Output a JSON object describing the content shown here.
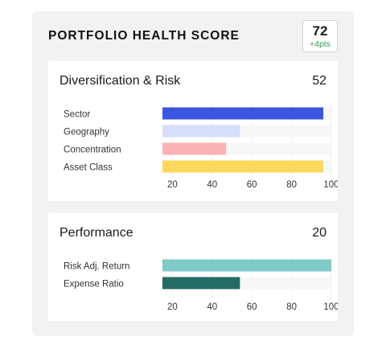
{
  "header": {
    "title": "PORTFOLIO HEALTH SCORE",
    "score": "72",
    "delta": "+4pts"
  },
  "chart_data": [
    {
      "type": "bar",
      "orientation": "horizontal",
      "title": "Diversification & Risk",
      "score": "52",
      "categories": [
        "Sector",
        "Geography",
        "Concentration",
        "Asset Class"
      ],
      "values": [
        96,
        54,
        47,
        96
      ],
      "colors": [
        "#3b55e0",
        "#d7defb",
        "#fbb3b6",
        "#fdd85d"
      ],
      "xticks": [
        20,
        40,
        60,
        80,
        100
      ],
      "xlim": [
        15,
        100
      ],
      "grid": true
    },
    {
      "type": "bar",
      "orientation": "horizontal",
      "title": "Performance",
      "score": "20",
      "categories": [
        "Risk Adj. Return",
        "Expense Ratio"
      ],
      "values": [
        100,
        54
      ],
      "colors": [
        "#7fcbc7",
        "#236b64"
      ],
      "xticks": [
        20,
        40,
        60,
        80,
        100
      ],
      "xlim": [
        15,
        100
      ],
      "grid": true
    }
  ]
}
